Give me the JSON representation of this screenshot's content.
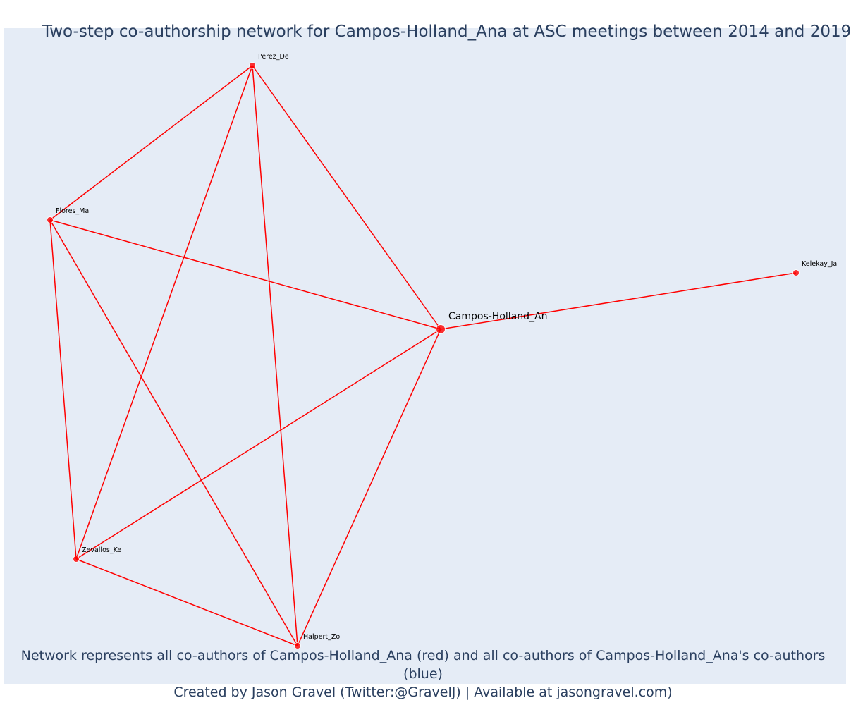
{
  "title": "Two-step co-authorship network for Campos-Holland_Ana at ASC meetings between 2014 and 2019",
  "footer": {
    "line1": "Network represents all co-authors of Campos-Holland_Ana (red) and all co-authors of Campos-Holland_Ana's co-authors (blue)",
    "line2": "Created by Jason Gravel (Twitter:@GravelJ) | Available at jasongravel.com)"
  },
  "colors": {
    "edge": "#ff0000",
    "node": "#ff0000",
    "background": "#e5ecf6",
    "text": "#2a3f5f"
  },
  "network": {
    "nodes": [
      {
        "id": "campos",
        "label": "Campos-Holland_An",
        "focal": true
      },
      {
        "id": "perez",
        "label": "Perez_De"
      },
      {
        "id": "flores",
        "label": "Flores_Ma"
      },
      {
        "id": "kelekay",
        "label": "Kelekay_Ja"
      },
      {
        "id": "zevallos",
        "label": "Zevallos_Ke"
      },
      {
        "id": "halpert",
        "label": "Halpert_Zo"
      }
    ],
    "edges": [
      [
        "perez",
        "flores"
      ],
      [
        "perez",
        "zevallos"
      ],
      [
        "perez",
        "halpert"
      ],
      [
        "perez",
        "campos"
      ],
      [
        "flores",
        "campos"
      ],
      [
        "flores",
        "zevallos"
      ],
      [
        "flores",
        "halpert"
      ],
      [
        "campos",
        "kelekay"
      ],
      [
        "campos",
        "zevallos"
      ],
      [
        "campos",
        "halpert"
      ],
      [
        "zevallos",
        "halpert"
      ]
    ]
  }
}
